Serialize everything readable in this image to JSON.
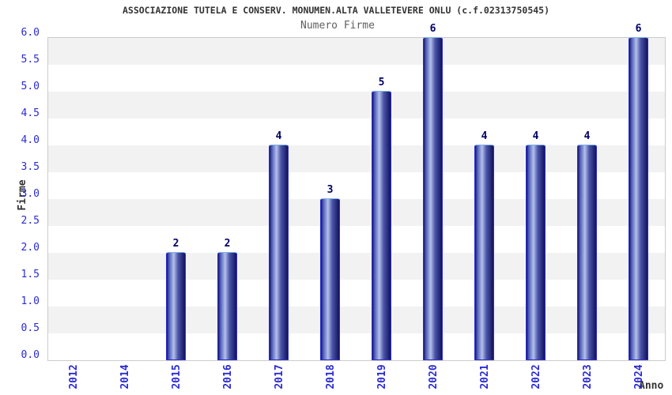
{
  "chart_data": {
    "type": "bar",
    "title": "ASSOCIAZIONE TUTELA E CONSERV. MONUMEN.ALTA VALLETEVERE ONLU (c.f.02313750545)",
    "subtitle": "Numero Firme",
    "xlabel": "Anno",
    "ylabel": "Firme",
    "categories": [
      "2012",
      "2014",
      "2015",
      "2016",
      "2017",
      "2018",
      "2019",
      "2020",
      "2021",
      "2022",
      "2023",
      "2024"
    ],
    "values": [
      0,
      0,
      2,
      2,
      4,
      3,
      5,
      6,
      4,
      4,
      4,
      6
    ],
    "bar_labels": [
      "",
      "",
      "2",
      "2",
      "4",
      "3",
      "5",
      "6",
      "4",
      "4",
      "4",
      "6"
    ],
    "ylim": [
      0,
      6
    ],
    "ytick_step": 0.5,
    "ytick_labels": [
      "0.0",
      "0.5",
      "1.0",
      "1.5",
      "2.0",
      "2.5",
      "3.0",
      "3.5",
      "4.0",
      "4.5",
      "5.0",
      "5.5",
      "6.0"
    ],
    "grid": "alternating-horizontal-bands",
    "legend": "none",
    "colors": {
      "title_text": "#333333",
      "subtitle_text": "#606060",
      "tick_text": "#2b2bd4",
      "axis_title_text": "#333333",
      "bar_value_text": "#000066",
      "bar_side_border": "#2d2dcf",
      "bar_top_border": "#7eb4ea",
      "bar_gradient": [
        "#15156e",
        "#4d5cb8",
        "#b4c0ea",
        "#4b55a8",
        "#12125e"
      ],
      "band_fill": "#f2f2f2",
      "band_alt_fill": "#ffffff",
      "plot_border": "#cccccc",
      "plot_background": "#ffffff"
    }
  }
}
